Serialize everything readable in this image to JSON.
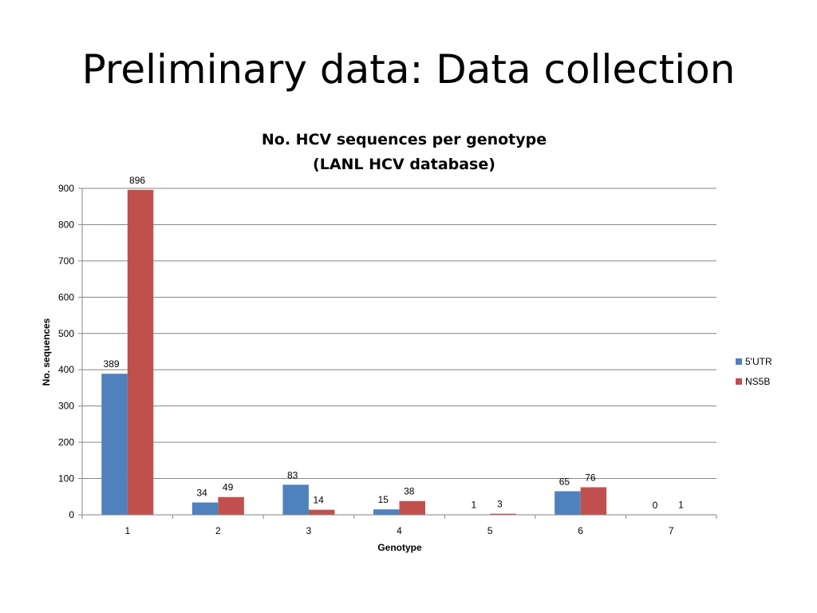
{
  "slide": {
    "title": "Preliminary data: Data collection"
  },
  "chart_data": {
    "type": "bar",
    "title_line1": "No. HCV sequences per genotype",
    "title_line2": "(LANL HCV database)",
    "xlabel": "Genotype",
    "ylabel": "No. sequences",
    "categories": [
      "1",
      "2",
      "3",
      "4",
      "5",
      "6",
      "7"
    ],
    "series": [
      {
        "name": "5'UTR",
        "color": "#4F81BD",
        "values": [
          389,
          34,
          83,
          15,
          1,
          65,
          0
        ]
      },
      {
        "name": "NS5B",
        "color": "#C0504D",
        "values": [
          896,
          49,
          14,
          38,
          3,
          76,
          1
        ]
      }
    ],
    "ylim": [
      0,
      900
    ],
    "yticks": [
      0,
      100,
      200,
      300,
      400,
      500,
      600,
      700,
      800,
      900
    ],
    "grid": true,
    "legend_position": "right",
    "data_labels": true
  }
}
